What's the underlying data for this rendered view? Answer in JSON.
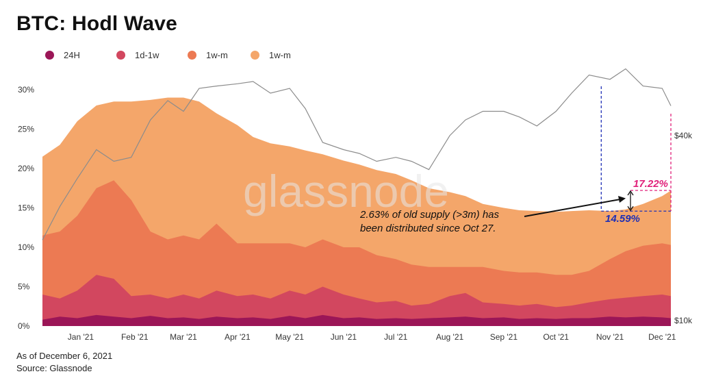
{
  "header": {
    "title": "BTC: Hodl Wave"
  },
  "legend": [
    {
      "label": "24H",
      "color": "#9b1657"
    },
    {
      "label": "1d-1w",
      "color": "#d2475f"
    },
    {
      "label": "1w-m",
      "color": "#ec7a53"
    },
    {
      "label": "1w-m",
      "color": "#f4a66a"
    }
  ],
  "footer": {
    "date": "As of December 6, 2021",
    "source": "Source: Glassnode"
  },
  "watermark": "glassnode",
  "chart_data": {
    "type": "area",
    "title": "BTC: Hodl Wave",
    "x_ticks": [
      "Jan '21",
      "Feb '21",
      "Mar '21",
      "Apr '21",
      "May '21",
      "Jun '21",
      "Jul '21",
      "Aug '21",
      "Sep '21",
      "Oct '21",
      "Nov '21",
      "Dec '21"
    ],
    "y_ticks": [
      "30%",
      "25%",
      "20%",
      "15%",
      "10%",
      "5%",
      "0%"
    ],
    "ylim": [
      0,
      32
    ],
    "right_axis_ticks": [
      "$40k",
      "$10k"
    ],
    "right_axis_scale": "log",
    "grid": false,
    "legend_position": "top-left",
    "x": [
      "2020-12-10",
      "2020-12-20",
      "2020-12-30",
      "2021-01-10",
      "2021-01-20",
      "2021-01-30",
      "2021-02-10",
      "2021-02-20",
      "2021-03-01",
      "2021-03-10",
      "2021-03-20",
      "2021-04-01",
      "2021-04-10",
      "2021-04-20",
      "2021-05-01",
      "2021-05-10",
      "2021-05-20",
      "2021-06-01",
      "2021-06-10",
      "2021-06-20",
      "2021-07-01",
      "2021-07-10",
      "2021-07-20",
      "2021-08-01",
      "2021-08-10",
      "2021-08-20",
      "2021-09-01",
      "2021-09-10",
      "2021-09-20",
      "2021-10-01",
      "2021-10-10",
      "2021-10-20",
      "2021-11-01",
      "2021-11-10",
      "2021-11-20",
      "2021-12-01",
      "2021-12-06"
    ],
    "series": [
      {
        "name": "24H",
        "values": [
          0.8,
          1.2,
          1.0,
          1.4,
          1.2,
          1.0,
          1.3,
          1.0,
          1.1,
          0.9,
          1.2,
          1.0,
          1.1,
          0.9,
          1.3,
          1.0,
          1.4,
          1.0,
          1.1,
          0.9,
          1.0,
          0.9,
          1.0,
          1.1,
          1.2,
          1.0,
          1.1,
          0.9,
          1.0,
          0.9,
          1.0,
          1.0,
          1.2,
          1.1,
          1.2,
          1.1,
          1.0
        ]
      },
      {
        "name": "1d-1w",
        "values": [
          4.0,
          3.5,
          4.5,
          6.5,
          6.0,
          3.8,
          4.0,
          3.5,
          4.0,
          3.5,
          4.5,
          3.8,
          4.0,
          3.5,
          4.5,
          4.0,
          5.0,
          4.0,
          3.5,
          3.0,
          3.2,
          2.6,
          2.8,
          3.8,
          4.2,
          3.0,
          2.8,
          2.6,
          2.8,
          2.4,
          2.6,
          3.0,
          3.4,
          3.6,
          3.8,
          4.0,
          3.8
        ]
      },
      {
        "name": "1w-m",
        "values": [
          11.5,
          12.0,
          14.0,
          17.5,
          18.5,
          16.0,
          12.0,
          11.0,
          11.5,
          11.0,
          13.0,
          10.5,
          10.5,
          10.5,
          10.5,
          10.0,
          11.0,
          10.0,
          10.0,
          9.0,
          8.5,
          7.8,
          7.5,
          7.5,
          7.5,
          7.5,
          7.0,
          6.8,
          6.8,
          6.5,
          6.5,
          7.0,
          8.5,
          9.5,
          10.2,
          10.5,
          10.3
        ]
      },
      {
        "name": "1w-m",
        "values": [
          21.5,
          23.0,
          26.0,
          28.0,
          28.5,
          28.5,
          28.7,
          29.0,
          29.0,
          28.5,
          27.0,
          25.5,
          24.0,
          23.2,
          22.8,
          22.3,
          21.8,
          21.0,
          20.5,
          19.8,
          19.3,
          18.5,
          17.5,
          17.0,
          16.5,
          15.5,
          15.0,
          14.7,
          14.6,
          14.5,
          14.6,
          14.7,
          14.6,
          14.8,
          15.5,
          16.5,
          17.2
        ]
      }
    ],
    "btc_price_usd": [
      18300,
      23500,
      29000,
      36000,
      33000,
      34000,
      45000,
      52000,
      48000,
      57000,
      58000,
      59000,
      60000,
      55000,
      57000,
      49000,
      38000,
      36000,
      35000,
      33000,
      34000,
      33000,
      31000,
      40000,
      45000,
      48000,
      48000,
      46000,
      43000,
      48000,
      55000,
      63000,
      61000,
      66000,
      58000,
      57000,
      50000
    ],
    "annotations": [
      {
        "text": "2.63% of old supply (>3m) has",
        "text2": "been distributed since Oct 27."
      },
      {
        "label_start": "14.59%",
        "value": 14.59,
        "date": "2021-10-27",
        "color": "#1e2fb5"
      },
      {
        "label_end": "17.22%",
        "value": 17.22,
        "date": "2021-12-06",
        "color": "#e0207a"
      }
    ]
  }
}
